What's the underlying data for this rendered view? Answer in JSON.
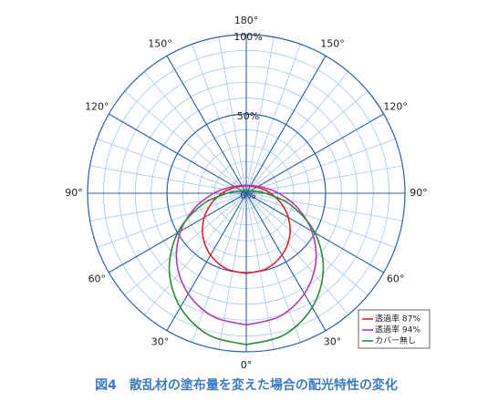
{
  "chart_data": {
    "type": "polar",
    "caption": "図4　散乱材の塗布量を変えた場合の配光特性の変化",
    "x": [
      0,
      15,
      30,
      45,
      60,
      75,
      90,
      105,
      120,
      135,
      150,
      165,
      180
    ],
    "series": [
      {
        "name": "透過率 87%",
        "color": "#d9232d",
        "values": [
          50.6,
          49.2,
          45.0,
          38.6,
          30.6,
          22.3,
          15.3,
          10.4,
          7.6,
          6.0,
          5.2,
          4.8,
          4.6
        ]
      },
      {
        "name": "透過率 94%",
        "color": "#b43cb4",
        "values": [
          83.0,
          80.5,
          73.2,
          61.9,
          47.7,
          32.8,
          20.4,
          12.6,
          8.7,
          6.7,
          5.7,
          5.2,
          5.0
        ]
      },
      {
        "name": "カバー無し",
        "color": "#2e8b3a",
        "values": [
          95.5,
          92.4,
          83.1,
          68.6,
          49.9,
          29.2,
          12.0,
          4.9,
          2.9,
          2.1,
          1.7,
          1.5,
          1.5
        ]
      }
    ],
    "rlim": [
      0,
      100
    ],
    "rticks": [
      {
        "value": 0,
        "label": "0%"
      },
      {
        "value": 50,
        "label": "50%"
      },
      {
        "value": 100,
        "label": "100%"
      }
    ],
    "angle_ticks": [
      {
        "value": 0,
        "label": "0°"
      },
      {
        "value": 30,
        "label": "30°"
      },
      {
        "value": 60,
        "label": "60°"
      },
      {
        "value": 90,
        "label": "90°"
      },
      {
        "value": 120,
        "label": "120°"
      },
      {
        "value": 150,
        "label": "150°"
      },
      {
        "value": 180,
        "label": "180°"
      }
    ],
    "grid": true
  }
}
